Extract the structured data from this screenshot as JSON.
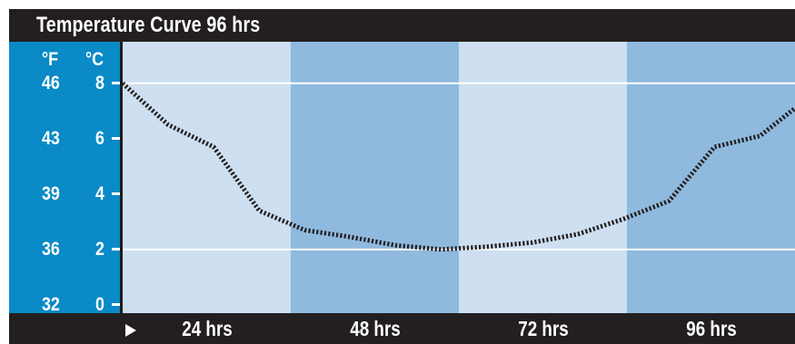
{
  "chart_data": {
    "type": "line",
    "title": "Temperature Curve 96 hrs",
    "xlabel": "",
    "ylabel": "",
    "y_units": [
      "°F",
      "°C"
    ],
    "y_tick_labels_f": [
      "46",
      "43",
      "39",
      "36",
      "32"
    ],
    "y_tick_labels_c": [
      "8",
      "6",
      "4",
      "2",
      "0"
    ],
    "y_ticks_c": [
      8,
      6,
      4,
      2,
      0
    ],
    "x_tick_labels": [
      "24 hrs",
      "48 hrs",
      "72 hrs",
      "96 hrs"
    ],
    "xlim": [
      0,
      96
    ],
    "ylim_c": [
      -0.3,
      9.5
    ],
    "grid_lines_c": [
      8,
      2
    ],
    "series": [
      {
        "values": [
          {
            "x": 0,
            "y": 8.0
          },
          {
            "x": 6.5,
            "y": 6.5
          },
          {
            "x": 13,
            "y": 5.7
          },
          {
            "x": 19.5,
            "y": 3.4
          },
          {
            "x": 26,
            "y": 2.7
          },
          {
            "x": 32.5,
            "y": 2.45
          },
          {
            "x": 39,
            "y": 2.15
          },
          {
            "x": 45.5,
            "y": 2.0
          },
          {
            "x": 52,
            "y": 2.1
          },
          {
            "x": 58.5,
            "y": 2.25
          },
          {
            "x": 65,
            "y": 2.55
          },
          {
            "x": 71.5,
            "y": 3.1
          },
          {
            "x": 78,
            "y": 3.75
          },
          {
            "x": 84.5,
            "y": 5.7
          },
          {
            "x": 91,
            "y": 6.1
          },
          {
            "x": 96,
            "y": 7.1
          }
        ]
      }
    ],
    "colors": {
      "band_light": "#cddff0",
      "band_dark": "#8fbade",
      "axis_panel": "#0a8ac6",
      "frame": "#231f20",
      "line": "#231f20",
      "gridline": "#ffffff"
    }
  }
}
